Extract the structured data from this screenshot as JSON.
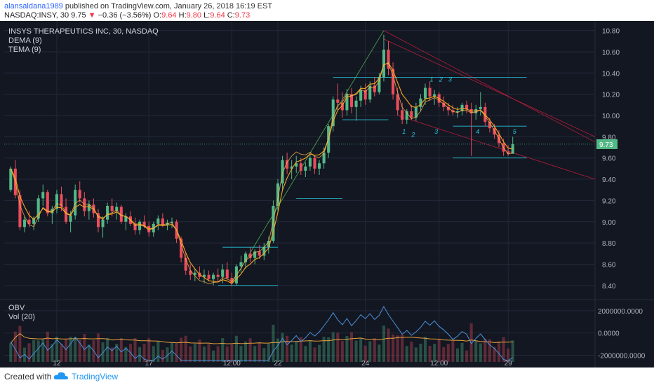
{
  "header": {
    "author": "alansaldana1989",
    "published": "published on TradingView.com, January 26, 2018 16:19 EST",
    "symbol_line": "NASDAQ:INSY, 30 9.75",
    "change": "−0.36 (−3.56%)",
    "ohlc_o_label": "O:",
    "ohlc_o": "9.64",
    "ohlc_h_label": "H:",
    "ohlc_h": "9.80",
    "ohlc_l_label": "L:",
    "ohlc_l": "9.64",
    "ohlc_c_label": "C:",
    "ohlc_c": "9.73"
  },
  "legend": {
    "title": "INSYS THERAPEUTICS INC, 30, NASDAQ",
    "ind1": "DEMA (9)",
    "ind2": "TEMA (9)",
    "lower1": "OBV",
    "lower2": "Vol (20)"
  },
  "footer": {
    "created": "Created with",
    "brand": "TradingView"
  },
  "colors": {
    "bg": "#131722",
    "up": "#53b987",
    "down": "#eb4d5c",
    "dema": "#f5a623",
    "tema": "#ffb74d",
    "obv": "#4a90d9",
    "volma": "#e8a33b",
    "grid": "#232838",
    "cyan": "#26c6da",
    "trend_red": "#b71c3a",
    "trend_green": "#4caf50"
  },
  "chart_data": {
    "type": "candlestick",
    "price_axis_ticks": [
      "10.80",
      "10.60",
      "10.40",
      "10.20",
      "10.00",
      "9.80",
      "9.60",
      "9.40",
      "9.20",
      "9.00",
      "8.80",
      "8.60",
      "8.40"
    ],
    "last_price": "9.73",
    "price_range": [
      8.3,
      10.85
    ],
    "obv_axis_ticks": [
      "2000000.0000",
      "0.0000",
      "-2000000.0000"
    ],
    "obv_range": [
      -2600000,
      3000000
    ],
    "x_ticks": [
      "12",
      "17",
      "12:00",
      "22",
      "24",
      "12:00",
      "29"
    ],
    "annotations": [
      "1",
      "2",
      "1",
      "2",
      "3",
      "3",
      "4",
      "5"
    ],
    "bars": [
      [
        9.3,
        9.52,
        9.28,
        9.5
      ],
      [
        9.5,
        9.58,
        9.22,
        9.25
      ],
      [
        9.25,
        9.3,
        8.92,
        8.95
      ],
      [
        8.95,
        9.05,
        8.9,
        9.02
      ],
      [
        9.02,
        9.1,
        8.95,
        8.98
      ],
      [
        8.98,
        9.05,
        8.92,
        9.03
      ],
      [
        9.03,
        9.25,
        9.0,
        9.22
      ],
      [
        9.22,
        9.35,
        9.15,
        9.28
      ],
      [
        9.28,
        9.3,
        9.05,
        9.08
      ],
      [
        9.08,
        9.15,
        8.98,
        9.12
      ],
      [
        9.12,
        9.3,
        9.08,
        9.26
      ],
      [
        9.26,
        9.33,
        9.1,
        9.14
      ],
      [
        9.14,
        9.22,
        8.98,
        9.0
      ],
      [
        9.0,
        9.1,
        8.9,
        9.06
      ],
      [
        9.06,
        9.35,
        9.02,
        9.3
      ],
      [
        9.3,
        9.38,
        9.18,
        9.22
      ],
      [
        9.22,
        9.28,
        9.05,
        9.1
      ],
      [
        9.1,
        9.2,
        9.02,
        9.16
      ],
      [
        9.16,
        9.22,
        9.04,
        9.08
      ],
      [
        9.08,
        9.12,
        8.9,
        8.95
      ],
      [
        8.95,
        9.05,
        8.85,
        9.02
      ],
      [
        9.02,
        9.18,
        8.98,
        9.15
      ],
      [
        9.15,
        9.22,
        9.05,
        9.1
      ],
      [
        9.1,
        9.18,
        9.02,
        9.14
      ],
      [
        9.14,
        9.16,
        8.98,
        9.0
      ],
      [
        9.0,
        9.08,
        8.92,
        9.05
      ],
      [
        9.05,
        9.1,
        8.96,
        8.98
      ],
      [
        8.98,
        9.04,
        8.88,
        8.92
      ],
      [
        8.92,
        9.02,
        8.88,
        9.0
      ],
      [
        9.0,
        9.06,
        8.94,
        8.96
      ],
      [
        8.96,
        9.0,
        8.86,
        8.9
      ],
      [
        8.9,
        9.0,
        8.86,
        8.98
      ],
      [
        8.98,
        9.06,
        8.92,
        9.03
      ],
      [
        9.03,
        9.08,
        8.95,
        8.97
      ],
      [
        8.97,
        9.02,
        8.92,
        8.99
      ],
      [
        8.99,
        9.04,
        8.94,
        9.0
      ],
      [
        9.0,
        9.02,
        8.8,
        8.84
      ],
      [
        8.84,
        8.86,
        8.62,
        8.66
      ],
      [
        8.66,
        8.7,
        8.5,
        8.54
      ],
      [
        8.54,
        8.6,
        8.45,
        8.5
      ],
      [
        8.5,
        8.56,
        8.44,
        8.52
      ],
      [
        8.52,
        8.58,
        8.46,
        8.48
      ],
      [
        8.48,
        8.55,
        8.42,
        8.5
      ],
      [
        8.5,
        8.54,
        8.44,
        8.46
      ],
      [
        8.46,
        8.52,
        8.4,
        8.5
      ],
      [
        8.5,
        8.56,
        8.44,
        8.48
      ],
      [
        8.48,
        8.6,
        8.42,
        8.55
      ],
      [
        8.55,
        8.62,
        8.45,
        8.47
      ],
      [
        8.47,
        8.52,
        8.39,
        8.42
      ],
      [
        8.42,
        8.6,
        8.4,
        8.58
      ],
      [
        8.58,
        8.68,
        8.52,
        8.62
      ],
      [
        8.62,
        8.72,
        8.56,
        8.7
      ],
      [
        8.7,
        8.76,
        8.62,
        8.66
      ],
      [
        8.66,
        8.74,
        8.6,
        8.72
      ],
      [
        8.72,
        8.78,
        8.65,
        8.68
      ],
      [
        8.68,
        8.8,
        8.64,
        8.76
      ],
      [
        8.76,
        8.86,
        8.7,
        8.82
      ],
      [
        8.82,
        9.2,
        8.8,
        9.15
      ],
      [
        9.15,
        9.4,
        9.1,
        9.36
      ],
      [
        9.36,
        9.62,
        9.3,
        9.58
      ],
      [
        9.58,
        9.65,
        9.45,
        9.5
      ],
      [
        9.5,
        9.58,
        9.4,
        9.52
      ],
      [
        9.52,
        9.62,
        9.46,
        9.55
      ],
      [
        9.55,
        9.6,
        9.44,
        9.48
      ],
      [
        9.48,
        9.56,
        9.42,
        9.52
      ],
      [
        9.52,
        9.64,
        9.48,
        9.6
      ],
      [
        9.6,
        9.62,
        9.45,
        9.5
      ],
      [
        9.5,
        9.58,
        9.44,
        9.55
      ],
      [
        9.55,
        9.7,
        9.5,
        9.65
      ],
      [
        9.65,
        9.92,
        9.6,
        9.9
      ],
      [
        9.9,
        10.18,
        9.85,
        10.15
      ],
      [
        10.15,
        10.3,
        10.05,
        10.12
      ],
      [
        10.12,
        10.22,
        9.98,
        10.05
      ],
      [
        10.05,
        10.25,
        10.0,
        10.2
      ],
      [
        10.2,
        10.26,
        10.02,
        10.08
      ],
      [
        10.08,
        10.18,
        9.95,
        10.14
      ],
      [
        10.14,
        10.28,
        10.08,
        10.24
      ],
      [
        10.24,
        10.3,
        10.1,
        10.15
      ],
      [
        10.15,
        10.32,
        10.12,
        10.28
      ],
      [
        10.28,
        10.36,
        10.18,
        10.22
      ],
      [
        10.22,
        10.4,
        10.2,
        10.36
      ],
      [
        10.36,
        10.76,
        10.32,
        10.62
      ],
      [
        10.62,
        10.7,
        10.38,
        10.44
      ],
      [
        10.44,
        10.5,
        10.15,
        10.2
      ],
      [
        10.2,
        10.26,
        10.0,
        10.05
      ],
      [
        10.05,
        10.12,
        9.92,
        9.96
      ],
      [
        9.96,
        10.06,
        9.92,
        10.04
      ],
      [
        10.04,
        10.1,
        9.96,
        9.98
      ],
      [
        9.98,
        10.12,
        9.95,
        10.08
      ],
      [
        10.08,
        10.2,
        10.04,
        10.16
      ],
      [
        10.16,
        10.3,
        10.1,
        10.26
      ],
      [
        10.26,
        10.32,
        10.14,
        10.18
      ],
      [
        10.18,
        10.24,
        10.1,
        10.2
      ],
      [
        10.2,
        10.22,
        10.08,
        10.12
      ],
      [
        10.12,
        10.18,
        10.04,
        10.08
      ],
      [
        10.08,
        10.12,
        10.0,
        10.05
      ],
      [
        10.05,
        10.1,
        10.0,
        10.03
      ],
      [
        10.03,
        10.08,
        9.98,
        10.04
      ],
      [
        10.04,
        10.12,
        10.0,
        10.1
      ],
      [
        10.1,
        10.14,
        10.02,
        10.06
      ],
      [
        10.06,
        10.12,
        9.62,
        10.02
      ],
      [
        10.02,
        10.1,
        9.96,
        10.06
      ],
      [
        10.06,
        10.22,
        10.0,
        10.08
      ],
      [
        10.08,
        10.12,
        9.9,
        9.94
      ],
      [
        9.94,
        9.98,
        9.84,
        9.88
      ],
      [
        9.88,
        9.92,
        9.78,
        9.82
      ],
      [
        9.82,
        9.86,
        9.7,
        9.74
      ],
      [
        9.74,
        9.78,
        9.62,
        9.66
      ],
      [
        9.66,
        9.72,
        9.62,
        9.64
      ],
      [
        9.64,
        9.8,
        9.64,
        9.73
      ]
    ]
  }
}
